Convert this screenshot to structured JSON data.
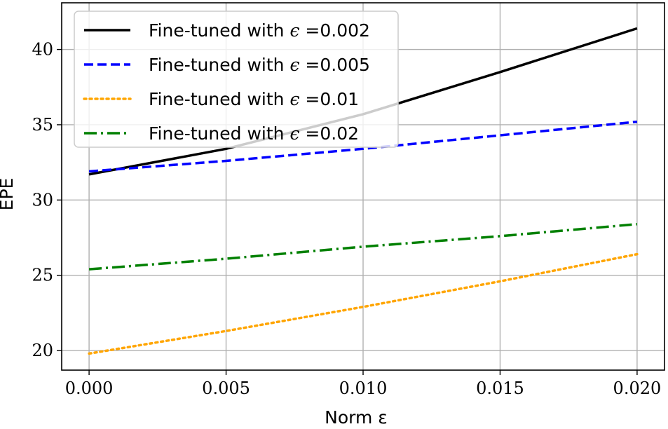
{
  "chart_data": {
    "type": "line",
    "xlabel": "Norm ε",
    "ylabel": "EPE",
    "xlim": [
      -0.001,
      0.021
    ],
    "ylim": [
      18.7,
      43.1
    ],
    "grid": true,
    "legend_position": "top-left",
    "x_ticks": [
      0.0,
      0.005,
      0.01,
      0.015,
      0.02
    ],
    "x_tick_labels": [
      "0.000",
      "0.005",
      "0.010",
      "0.015",
      "0.020"
    ],
    "y_ticks": [
      20,
      25,
      30,
      35,
      40
    ],
    "y_tick_labels": [
      "20",
      "25",
      "30",
      "35",
      "40"
    ],
    "x": [
      0.0,
      0.005,
      0.01,
      0.015,
      0.02
    ],
    "series": [
      {
        "name": "Fine-tuned with ϵ =0.002",
        "legend_prefix": "Fine-tuned with ",
        "legend_symbol": "ϵ",
        "legend_suffix": " =0.002",
        "color": "#000000",
        "style": "solid",
        "values": [
          31.7,
          33.4,
          35.7,
          38.5,
          41.4
        ]
      },
      {
        "name": "Fine-tuned with ϵ =0.005",
        "legend_prefix": "Fine-tuned with ",
        "legend_symbol": "ϵ",
        "legend_suffix": " =0.005",
        "color": "#0000ff",
        "style": "dashed",
        "values": [
          31.9,
          32.6,
          33.4,
          34.3,
          35.2
        ]
      },
      {
        "name": "Fine-tuned with ϵ =0.01",
        "legend_prefix": "Fine-tuned with ",
        "legend_symbol": "ϵ",
        "legend_suffix": " =0.01",
        "color": "#ffa500",
        "style": "dotted",
        "values": [
          19.8,
          21.3,
          22.9,
          24.6,
          26.4
        ]
      },
      {
        "name": "Fine-tuned with ϵ =0.02",
        "legend_prefix": "Fine-tuned with ",
        "legend_symbol": "ϵ",
        "legend_suffix": " =0.02",
        "color": "#008000",
        "style": "dashdot",
        "values": [
          25.4,
          26.1,
          26.9,
          27.6,
          28.4
        ]
      }
    ]
  }
}
